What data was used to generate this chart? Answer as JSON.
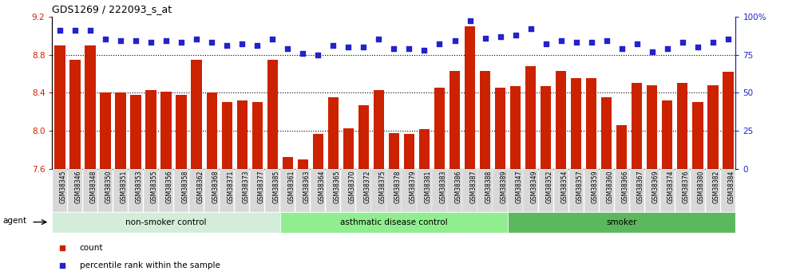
{
  "title": "GDS1269 / 222093_s_at",
  "ylim_left": [
    7.6,
    9.2
  ],
  "ylim_right": [
    0,
    100
  ],
  "yticks_left": [
    7.6,
    8.0,
    8.4,
    8.8,
    9.2
  ],
  "yticks_right": [
    0,
    25,
    50,
    75,
    100
  ],
  "ytick_labels_right": [
    "0",
    "25",
    "50",
    "75",
    "100%"
  ],
  "bar_color": "#cc2200",
  "dot_color": "#2222cc",
  "plot_bg": "#ffffff",
  "tick_bg": "#d8d8d8",
  "categories": [
    "GSM38345",
    "GSM38346",
    "GSM38348",
    "GSM38350",
    "GSM38351",
    "GSM38353",
    "GSM38355",
    "GSM38356",
    "GSM38358",
    "GSM38362",
    "GSM38368",
    "GSM38371",
    "GSM38373",
    "GSM38377",
    "GSM38385",
    "GSM38361",
    "GSM38363",
    "GSM38364",
    "GSM38365",
    "GSM38370",
    "GSM38372",
    "GSM38375",
    "GSM38378",
    "GSM38379",
    "GSM38381",
    "GSM38383",
    "GSM38386",
    "GSM38387",
    "GSM38388",
    "GSM38389",
    "GSM38347",
    "GSM38349",
    "GSM38352",
    "GSM38354",
    "GSM38357",
    "GSM38359",
    "GSM38360",
    "GSM38366",
    "GSM38367",
    "GSM38369",
    "GSM38374",
    "GSM38376",
    "GSM38380",
    "GSM38382",
    "GSM38384"
  ],
  "bar_values": [
    8.9,
    8.75,
    8.9,
    8.4,
    8.4,
    8.38,
    8.43,
    8.41,
    8.38,
    8.75,
    8.4,
    8.3,
    8.32,
    8.3,
    8.75,
    7.73,
    7.7,
    7.97,
    8.35,
    8.03,
    8.27,
    8.43,
    7.98,
    7.97,
    8.02,
    8.45,
    8.63,
    9.1,
    8.63,
    8.45,
    8.47,
    8.68,
    8.47,
    8.63,
    8.55,
    8.55,
    8.35,
    8.06,
    8.5,
    8.48,
    8.32,
    8.5,
    8.3,
    8.48,
    8.62
  ],
  "dot_values": [
    91,
    91,
    91,
    85,
    84,
    84,
    83,
    84,
    83,
    85,
    83,
    81,
    82,
    81,
    85,
    79,
    76,
    75,
    81,
    80,
    80,
    85,
    79,
    79,
    78,
    82,
    84,
    97,
    86,
    87,
    88,
    92,
    82,
    84,
    83,
    83,
    84,
    79,
    82,
    77,
    79,
    83,
    80,
    83,
    85
  ],
  "groups": [
    {
      "label": "non-smoker control",
      "start": 0,
      "end": 14,
      "color": "#d4edda"
    },
    {
      "label": "asthmatic disease control",
      "start": 15,
      "end": 29,
      "color": "#90ee90"
    },
    {
      "label": "smoker",
      "start": 30,
      "end": 44,
      "color": "#5cb85c"
    }
  ],
  "legend_items": [
    {
      "label": "count",
      "color": "#cc2200",
      "marker": "s"
    },
    {
      "label": "percentile rank within the sample",
      "color": "#2222cc",
      "marker": "s"
    }
  ],
  "agent_label": "agent",
  "title_color": "#000000",
  "axis_label_color_left": "#cc2200",
  "axis_label_color_right": "#2222cc"
}
